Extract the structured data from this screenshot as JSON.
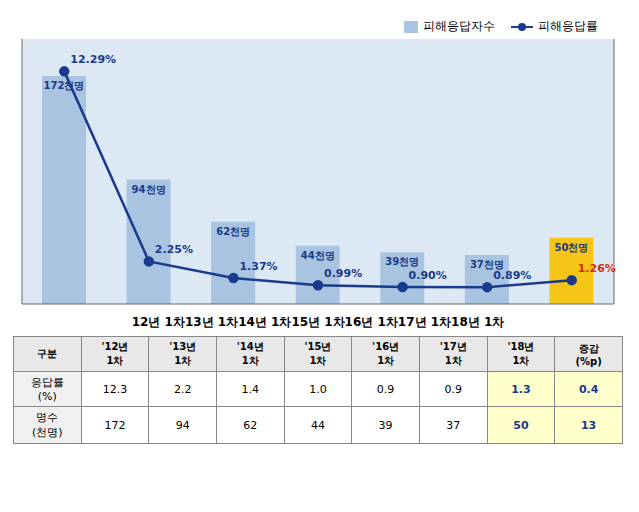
{
  "chart_data": {
    "type": "bar",
    "categories": [
      "12년 1차",
      "13년 1차",
      "14년 1차",
      "15년 1차",
      "16년 1차",
      "17년 1차",
      "18년 1차"
    ],
    "x_label": "12년 1차13년 1차14년 1차15년 1차16년 1차17년 1차18년 1차",
    "series": [
      {
        "name": "피해응답자수",
        "type": "bar",
        "colors": [
          "#a8c4e0",
          "#a8c4e0",
          "#a8c4e0",
          "#a8c4e0",
          "#a8c4e0",
          "#a8c4e0",
          "#f5c518"
        ],
        "values": [
          172,
          94,
          62,
          44,
          39,
          37,
          50
        ],
        "value_labels": [
          "172천명",
          "94천명",
          "62천명",
          "44천명",
          "39천명",
          "37천명",
          "50천명"
        ],
        "data_labels": true
      },
      {
        "name": "피해응답률",
        "type": "line",
        "axis": "y2",
        "color": "#1a3a8c",
        "marker": "circle",
        "values": [
          12.29,
          2.25,
          1.37,
          0.99,
          0.9,
          0.89,
          1.26
        ],
        "value_labels": [
          "12.29%",
          "2.25%",
          "1.37%",
          "0.99%",
          "0.90%",
          "0.89%",
          "1.26%"
        ],
        "data_labels": true
      }
    ],
    "ylim": [
      0,
      200
    ],
    "y2lim": [
      0,
      14
    ],
    "tick_labels": false,
    "grid": false,
    "legend": "upper right",
    "table": {
      "header": [
        "구분",
        "'12년\n1차",
        "'13년\n1차",
        "'14년\n1차",
        "'15년\n1차",
        "'16년\n1차",
        "'17년\n1차",
        "'18년\n1차",
        "증감\n(%p)"
      ],
      "rows": [
        {
          "label": "응답률\n(%)",
          "values": [
            "12.3",
            "2.2",
            "1.4",
            "1.0",
            "0.9",
            "0.9",
            "1.3",
            "0.4"
          ]
        },
        {
          "label": "명수\n(천명)",
          "values": [
            "172",
            "94",
            "62",
            "44",
            "39",
            "37",
            "50",
            "13"
          ]
        }
      ]
    }
  }
}
